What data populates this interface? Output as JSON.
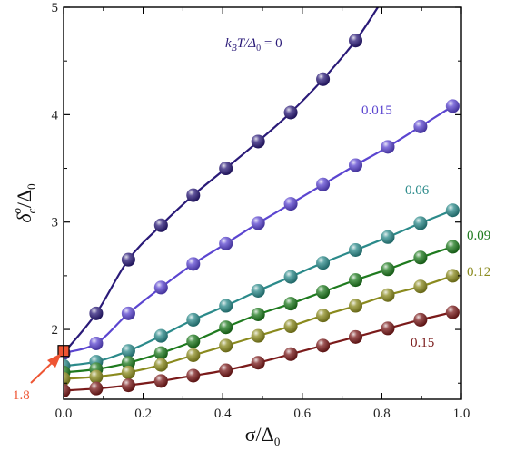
{
  "chart_data": {
    "type": "line",
    "xlabel": "σ/Δ",
    "xlabel_sub": "0",
    "ylabel_main": "δ",
    "ylabel_sup": "o",
    "ylabel_sub": "c",
    "ylabel_tail": "/Δ",
    "ylabel_tail_sub": "0",
    "xlim": [
      0.0,
      1.0
    ],
    "ylim": [
      1.35,
      5.0
    ],
    "xticks": [
      "0.0",
      "0.2",
      "0.4",
      "0.6",
      "0.8",
      "1.0"
    ],
    "yticks": [
      "2",
      "3",
      "4",
      "5"
    ],
    "grid": false,
    "legend": "labels next to curves",
    "series_label_prefix": "k",
    "series_label_prefix_sub": "B",
    "series_label_prefix_tail": "T/Δ",
    "series_label_prefix_tail_sub": "0",
    "series_label_eq": " = 0",
    "series": [
      {
        "name": "0",
        "color": "#2a1a78",
        "x": [
          0.0,
          0.082,
          0.163,
          0.245,
          0.326,
          0.408,
          0.489,
          0.571,
          0.652,
          0.734
        ],
        "y": [
          1.78,
          2.15,
          2.65,
          2.97,
          3.25,
          3.5,
          3.75,
          4.02,
          4.33,
          4.69
        ],
        "curve_extends_to": [
          0.79,
          5.0
        ]
      },
      {
        "name": "0.015",
        "color": "#5b45d0",
        "x": [
          0.0,
          0.082,
          0.163,
          0.245,
          0.326,
          0.408,
          0.489,
          0.571,
          0.652,
          0.734,
          0.815,
          0.897,
          0.978
        ],
        "y": [
          1.78,
          1.87,
          2.15,
          2.39,
          2.61,
          2.8,
          2.99,
          3.17,
          3.35,
          3.53,
          3.7,
          3.89,
          4.08
        ]
      },
      {
        "name": "0.06",
        "color": "#2b8a8a",
        "x": [
          0.0,
          0.082,
          0.163,
          0.245,
          0.326,
          0.408,
          0.489,
          0.571,
          0.652,
          0.734,
          0.815,
          0.897,
          0.978
        ],
        "y": [
          1.66,
          1.7,
          1.8,
          1.94,
          2.09,
          2.22,
          2.36,
          2.49,
          2.62,
          2.74,
          2.86,
          2.99,
          3.11
        ]
      },
      {
        "name": "0.09",
        "color": "#1e7a1e",
        "x": [
          0.0,
          0.082,
          0.163,
          0.245,
          0.326,
          0.408,
          0.489,
          0.571,
          0.652,
          0.734,
          0.815,
          0.897,
          0.978
        ],
        "y": [
          1.6,
          1.63,
          1.69,
          1.78,
          1.89,
          2.02,
          2.14,
          2.24,
          2.35,
          2.46,
          2.56,
          2.67,
          2.77
        ]
      },
      {
        "name": "0.12",
        "color": "#8a8a1e",
        "x": [
          0.0,
          0.082,
          0.163,
          0.245,
          0.326,
          0.408,
          0.489,
          0.571,
          0.652,
          0.734,
          0.815,
          0.897,
          0.978
        ],
        "y": [
          1.54,
          1.56,
          1.6,
          1.67,
          1.76,
          1.85,
          1.94,
          2.03,
          2.13,
          2.22,
          2.32,
          2.4,
          2.5
        ]
      },
      {
        "name": "0.15",
        "color": "#7a1a1a",
        "x": [
          0.0,
          0.082,
          0.163,
          0.245,
          0.326,
          0.408,
          0.489,
          0.571,
          0.652,
          0.734,
          0.815,
          0.897,
          0.978
        ],
        "y": [
          1.43,
          1.45,
          1.48,
          1.52,
          1.57,
          1.62,
          1.69,
          1.77,
          1.85,
          1.93,
          2.01,
          2.09,
          2.16
        ]
      }
    ],
    "marker": {
      "label": "1.8",
      "x": 0.0,
      "y": 1.8,
      "color": "#ee5533"
    }
  }
}
